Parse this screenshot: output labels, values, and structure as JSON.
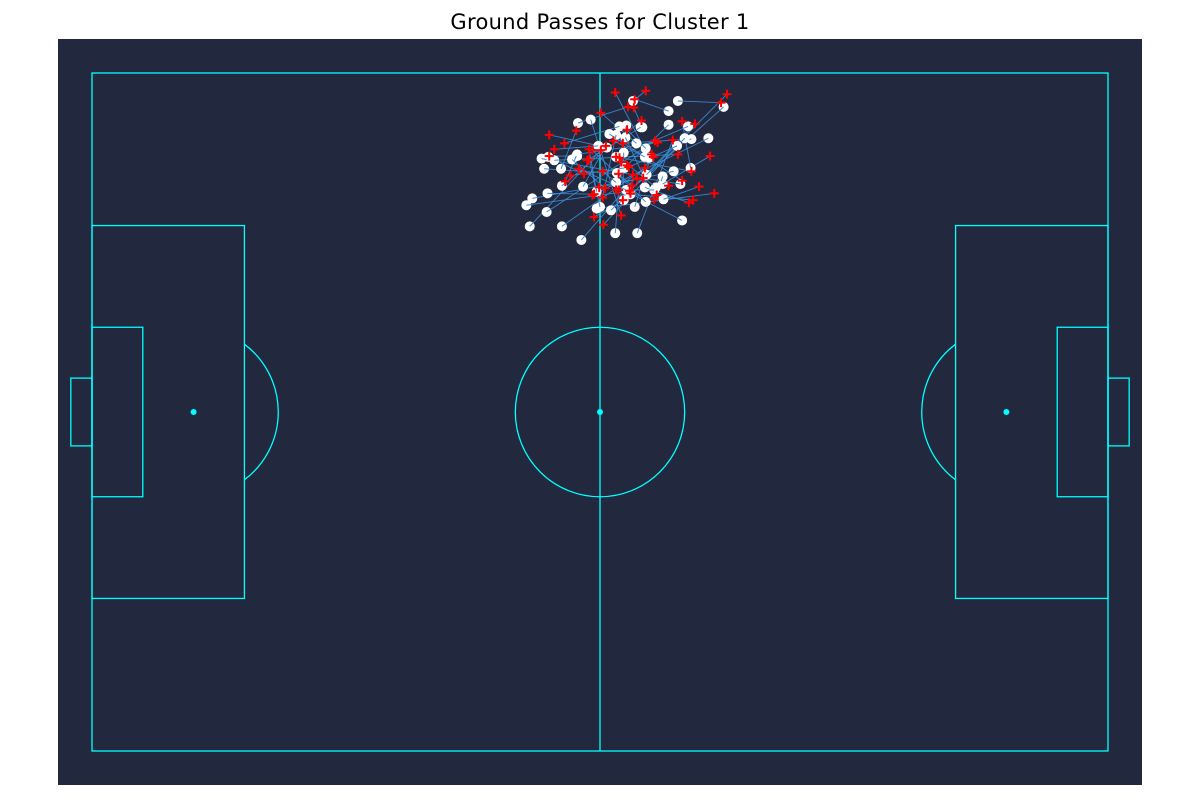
{
  "chart_data": {
    "type": "scatter",
    "title": "Ground Passes for Cluster 1",
    "xlabel": "",
    "ylabel": "",
    "pitch": {
      "length": 120,
      "width": 80,
      "background": "#22293F",
      "line_color": "#00FFFF"
    },
    "colors": {
      "pass_line": "#3C8FD8",
      "pass_start": "#FFFFFF",
      "pass_end": "#FF0000"
    },
    "passes": [
      [
        57.4,
        5.9,
        63.3,
        4.0
      ],
      [
        60.8,
        8.8,
        54.0,
        7.3
      ],
      [
        63.1,
        13.8,
        57.5,
        11.3
      ],
      [
        65.8,
        10.0,
        61.8,
        2.3
      ],
      [
        70.7,
        11.2,
        69.7,
        5.7
      ],
      [
        61.3,
        16.2,
        71.2,
        6.0
      ],
      [
        61.9,
        12.9,
        60.3,
        11.6
      ],
      [
        63.9,
        3.3,
        65.4,
        2.1
      ],
      [
        69.2,
        3.3,
        74.3,
        3.5
      ],
      [
        70.8,
        7.8,
        62.7,
        8.3
      ],
      [
        64.1,
        15.8,
        66.1,
        9.6
      ],
      [
        67.4,
        13.1,
        73.0,
        9.8
      ],
      [
        72.8,
        7.7,
        59.1,
        14.4
      ],
      [
        65.5,
        12.0,
        75.0,
        2.5
      ],
      [
        55.4,
        11.3,
        57.2,
        6.8
      ],
      [
        68.7,
        11.6,
        59.9,
        13.5
      ],
      [
        53.9,
        9.9,
        58.1,
        11.9
      ],
      [
        74.6,
        4.0,
        63.5,
        13.9
      ],
      [
        69.1,
        8.6,
        63.4,
        11.1
      ],
      [
        57.3,
        9.8,
        54.0,
        9.8
      ],
      [
        55.5,
        13.3,
        64.9,
        5.6
      ],
      [
        63.1,
        6.2,
        62.5,
        10.5
      ],
      [
        67.5,
        14.9,
        71.7,
        13.4
      ],
      [
        69.5,
        13.1,
        65.1,
        12.4
      ],
      [
        68.1,
        4.5,
        64.1,
        3.1
      ],
      [
        65.0,
        6.4,
        64.0,
        4.1
      ],
      [
        64.3,
        8.3,
        60.1,
        4.7
      ],
      [
        57.8,
        19.7,
        66.3,
        9.9
      ],
      [
        61.8,
        18.9,
        62.2,
        13.8
      ],
      [
        64.4,
        18.9,
        68.6,
        7.9
      ],
      [
        55.5,
        18.1,
        65.3,
        11.2
      ],
      [
        53.8,
        14.2,
        59.3,
        14.3
      ],
      [
        63.6,
        14.3,
        71.0,
        15.0
      ],
      [
        69.7,
        17.4,
        63.6,
        14.2
      ],
      [
        51.7,
        18.1,
        60.1,
        9.1
      ],
      [
        53.4,
        11.3,
        62.2,
        11.9
      ],
      [
        65.3,
        13.5,
        70.5,
        15.3
      ],
      [
        62.9,
        11.2,
        56.5,
        12.1
      ],
      [
        59.6,
        16.0,
        73.5,
        14.2
      ],
      [
        57.3,
        9.6,
        66.8,
        8.2
      ],
      [
        51.3,
        15.6,
        68.1,
        13.3
      ],
      [
        52.0,
        14.8,
        64.4,
        12.5
      ],
      [
        62.8,
        15.0,
        59.3,
        17.0
      ],
      [
        61.9,
        7.3,
        60.3,
        14.7
      ],
      [
        70.4,
        6.3,
        61.9,
        9.9
      ],
      [
        68.1,
        6.1,
        63.2,
        10.9
      ],
      [
        60.0,
        15.8,
        58.7,
        10.2
      ],
      [
        62.3,
        6.3,
        55.8,
        8.3
      ],
      [
        59.8,
        8.6,
        54.6,
        9.0
      ],
      [
        66.6,
        13.5,
        62.3,
        10.0
      ],
      [
        70.0,
        7.7,
        60.4,
        17.9
      ],
      [
        66.4,
        13.8,
        61.9,
        13.8
      ],
      [
        54.6,
        10.3,
        69.2,
        9.6
      ],
      [
        53.1,
        10.1,
        63.9,
        12.0
      ],
      [
        65.3,
        9.9,
        61.6,
        8.0
      ],
      [
        67.4,
        12.2,
        66.7,
        14.4
      ],
      [
        65.4,
        15.2,
        59.1,
        9.1
      ],
      [
        63.0,
        7.6,
        66.4,
        14.9
      ],
      [
        61.9,
        9.9,
        70.8,
        11.6
      ],
      [
        62.8,
        9.4,
        62.7,
        15.0
      ],
      [
        58.9,
        5.5,
        62.5,
        16.8
      ],
      [
        53.7,
        16.4,
        66.5,
        8.0
      ],
      [
        64.8,
        6.4,
        58.5,
        10.3
      ],
      [
        65.4,
        8.9,
        63.2,
        6.7
      ],
      [
        59.6,
        14.0,
        58.7,
        9.0
      ],
      [
        62.0,
        11.8,
        63.8,
        13.3
      ],
      [
        56.7,
        10.2,
        60.6,
        13.6
      ],
      [
        61.1,
        7.2,
        69.7,
        12.7
      ],
      [
        58.0,
        13.4,
        60.7,
        8.6
      ],
      [
        57.2,
        9.8,
        55.9,
        12.8
      ]
    ]
  }
}
